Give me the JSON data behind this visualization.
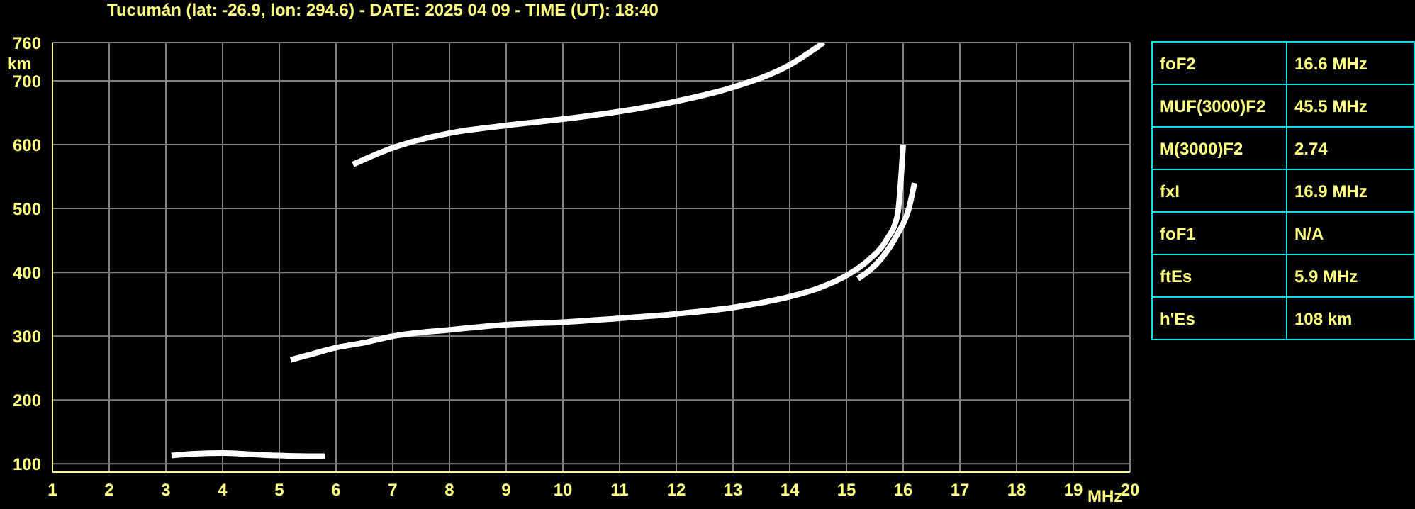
{
  "chart_data": {
    "type": "line",
    "title": "Tucumán (lat: -26.9, lon: 294.6) - DATE: 2025 04 09 - TIME (UT): 18:40",
    "xlabel": "MHz",
    "ylabel": "km",
    "xlim": [
      1,
      20
    ],
    "xticks": [
      1,
      2,
      3,
      4,
      5,
      6,
      7,
      8,
      9,
      10,
      11,
      12,
      13,
      14,
      15,
      16,
      17,
      18,
      19,
      20
    ],
    "ylim": [
      87,
      760
    ],
    "yticks": [
      100,
      200,
      300,
      400,
      500,
      600,
      700,
      760
    ],
    "grid": true,
    "marker": "none",
    "line_style": "solid",
    "series": [
      {
        "color": "#ffffff",
        "x": [
          3.1,
          3.5,
          4,
          4.5,
          5,
          5.5,
          5.8
        ],
        "values": [
          113,
          116,
          117,
          115,
          113,
          112,
          112
        ]
      },
      {
        "color": "#ffffff",
        "x": [
          5.2,
          5.5,
          6,
          6.5,
          7,
          8,
          9,
          10,
          11,
          12,
          13,
          14,
          14.5,
          15,
          15.4,
          15.7,
          15.9,
          16
        ],
        "values": [
          263,
          270,
          282,
          290,
          300,
          310,
          318,
          322,
          328,
          335,
          345,
          362,
          375,
          395,
          420,
          450,
          490,
          600
        ]
      },
      {
        "color": "#ffffff",
        "x": [
          15.2,
          15.6,
          15.9,
          16.1,
          16.2
        ],
        "values": [
          390,
          420,
          460,
          500,
          540
        ]
      },
      {
        "color": "#ffffff",
        "x": [
          6.3,
          7,
          8,
          9,
          10,
          11,
          12,
          13,
          14,
          14.6
        ],
        "values": [
          569,
          595,
          618,
          630,
          640,
          652,
          668,
          690,
          725,
          760
        ]
      }
    ],
    "annotations": [
      "foF2",
      "16.6 MHz",
      "MUF(3000)F2",
      "45.5 MHz",
      "M(3000)F2",
      "2.74",
      "fxI",
      "16.9 MHz",
      "foF1",
      "N/A",
      "ftEs",
      "5.9 MHz",
      "h'Es",
      "108 km"
    ]
  }
}
